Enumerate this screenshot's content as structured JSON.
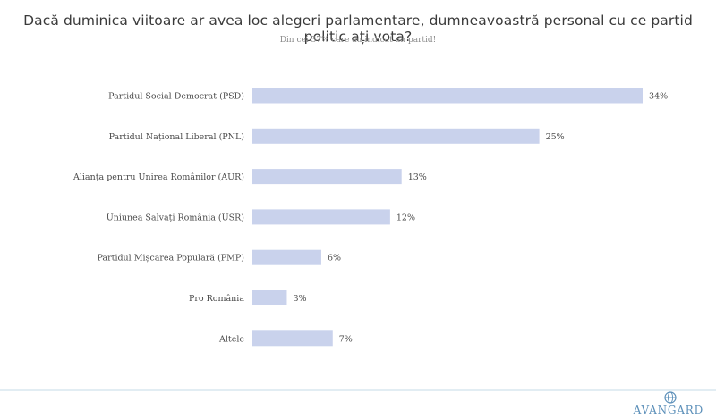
{
  "title": "Dacă duminica viitoare ar avea loc alegeri parlamentare, dumneavoastră personal cu ce partid politic ați vota?",
  "subtitle": "Din cei 37% care au indicat un partid!",
  "brand": {
    "name": "AVANGARD",
    "logo_icon": "globe-icon"
  },
  "colors": {
    "bar": "#c9d2ec",
    "label": "#4a4a4a",
    "value": "#4a4a4a"
  },
  "chart_data": {
    "type": "bar",
    "orientation": "horizontal",
    "categories": [
      "Partidul Social Democrat (PSD)",
      "Partidul Național Liberal (PNL)",
      "Alianța pentru Unirea Românilor (AUR)",
      "Uniunea Salvați România (USR)",
      "Partidul Mișcarea Populară (PMP)",
      "Pro România",
      "Altele"
    ],
    "values": [
      34,
      25,
      13,
      12,
      6,
      3,
      7
    ],
    "value_labels": [
      "34%",
      "25%",
      "13%",
      "12%",
      "6%",
      "3%",
      "7%"
    ],
    "unit": "%",
    "xlim": [
      0,
      34
    ],
    "grid": false,
    "legend": "none"
  }
}
